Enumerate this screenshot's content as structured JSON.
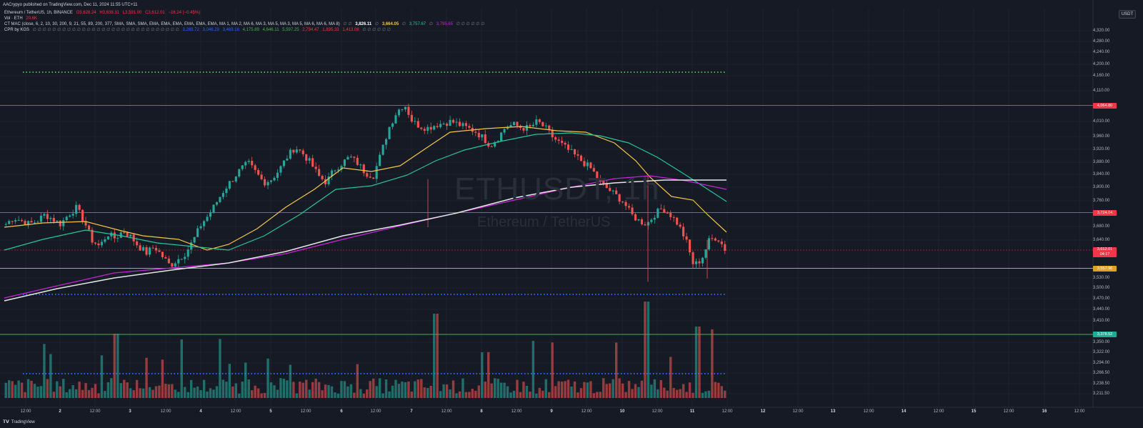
{
  "publisher": "AACrypyo published on TradingView.com, Dec 11, 2024 11:55 UTC+11",
  "legend": {
    "line1": {
      "label": "Ethereum / TetherUS, 1h, BINANCE",
      "o": "O3,628.24",
      "h": "H3,638.31",
      "l": "L3,591.00",
      "c": "C3,612.01",
      "chg": "−16.24 (−0.45%)"
    },
    "line2": {
      "label": "Vol · ETH",
      "value": "20.6K"
    },
    "line3": {
      "label": "CT MAC (close, 6, 2, 10, 30, 200, 9, 21, 55, 89, 200, 377, SMA, SMA, SMA, EMA, EMA, EMA, EMA, EMA, EMA, MA 1, MA 2, MA 6, MA 3, MA 5, MA 3, MA 5, MA 6, MA 6, MA 8)",
      "symbols": "∅ ∅",
      "v1": "3,826.11",
      "s2": "∅",
      "v2": "3,664.05",
      "s3": "∅",
      "v3": "3,757.67",
      "s4": "∅",
      "v4": "3,795.65",
      "tail": "∅ ∅ ∅ ∅ ∅ ∅"
    },
    "line4": {
      "label": "CPR by KGS",
      "symbols": "∅ ∅ ∅ ∅ ∅ ∅ ∅ ∅ ∅ ∅ ∅ ∅ ∅ ∅ ∅ ∅ ∅ ∅ ∅ ∅ ∅ ∅ ∅ ∅ ∅ ∅ ∅ ∅ ∅ ∅",
      "v1": "3,269.72",
      "v2": "3,046.29",
      "v3": "3,469.16",
      "v4": "4,175.89",
      "v5": "4,646.11",
      "v6": "5,597.25",
      "v7": "2,794.47",
      "v8": "1,895.33",
      "v9": "1,413.08",
      "tail": "∅ ∅ ∅ ∅ ∅ ∅"
    }
  },
  "watermark": {
    "symbol": "ETHUSDT, 1h",
    "name": "Ethereum / TetherUS"
  },
  "unit_button": "USDT",
  "footer": {
    "brand": "TradingView"
  },
  "price_axis": {
    "ticks": [
      "4,320.00",
      "4,280.00",
      "4,240.00",
      "4,200.00",
      "4,160.00",
      "4,110.00",
      "4,010.00",
      "3,960.00",
      "3,920.00",
      "3,880.00",
      "3,840.00",
      "3,800.00",
      "3,760.00",
      "3,680.00",
      "3,640.00",
      "3,530.00",
      "3,500.00",
      "3,470.00",
      "3,440.00",
      "3,410.00",
      "3,350.00",
      "3,322.00",
      "3,294.00",
      "3,266.50",
      "3,238.50",
      "3,211.50"
    ],
    "tags": [
      {
        "label": "4,064.80",
        "color": "#f23645"
      },
      {
        "label": "3,724.04",
        "color": "#f23645"
      },
      {
        "label": "3,612.01",
        "sub": "04:17",
        "color": "#f23645"
      },
      {
        "label": "3,557.96",
        "color": "#e0a020"
      },
      {
        "label": "3,378.52",
        "color": "#22ab94"
      }
    ]
  },
  "time_axis": {
    "labels": [
      "12:00",
      "2",
      "12:00",
      "3",
      "12:00",
      "4",
      "12:00",
      "5",
      "12:00",
      "6",
      "12:00",
      "7",
      "12:00",
      "8",
      "12:00",
      "9",
      "12:00",
      "10",
      "12:00",
      "11",
      "12:00",
      "12",
      "12:00",
      "13",
      "12:00",
      "14",
      "12:00",
      "15",
      "12:00",
      "16",
      "12:00"
    ]
  },
  "colors": {
    "bg": "#161a25",
    "up": "#26a69a",
    "down": "#ef5350",
    "ma_yellow": "#f5c542",
    "ma_green": "#26c49a",
    "ma_purple": "#c724d6",
    "ma_white": "#e6e6e6",
    "res_line": "#f23645",
    "sup_line": "#e0a020",
    "green_line": "#4caf50",
    "dot_green": "#4caf50",
    "dot_blue": "#2962ff"
  },
  "chart_data": {
    "type": "candlestick",
    "title": "Ethereum / TetherUS, 1h, BINANCE",
    "ylim": [
      3200,
      4340
    ],
    "horizontal_levels": [
      4064.8,
      3724.04,
      3557.96,
      3378.52
    ],
    "dotted_levels": [
      4180,
      3490,
      3270
    ],
    "ohlc_path": [
      3690,
      3710,
      3700,
      3690,
      3700,
      3720,
      3705,
      3690,
      3720,
      3740,
      3700,
      3640,
      3620,
      3660,
      3645,
      3670,
      3650,
      3620,
      3600,
      3620,
      3590,
      3560,
      3580,
      3600,
      3640,
      3690,
      3720,
      3760,
      3800,
      3830,
      3860,
      3880,
      3850,
      3820,
      3830,
      3860,
      3900,
      3930,
      3910,
      3880,
      3840,
      3820,
      3860,
      3880,
      3900,
      3880,
      3850,
      3840,
      3910,
      3990,
      4040,
      4065,
      4010,
      3995,
      3990,
      4000,
      4005,
      4010,
      4000,
      3990,
      3980,
      3960,
      3935,
      3960,
      3995,
      4000,
      3990,
      3990,
      4010,
      3990,
      3960,
      3940,
      3920,
      3900,
      3880,
      3860,
      3820,
      3800,
      3780,
      3760,
      3720,
      3700,
      3690,
      3720,
      3740,
      3720,
      3690,
      3640,
      3560,
      3580,
      3640,
      3650,
      3612
    ]
  }
}
